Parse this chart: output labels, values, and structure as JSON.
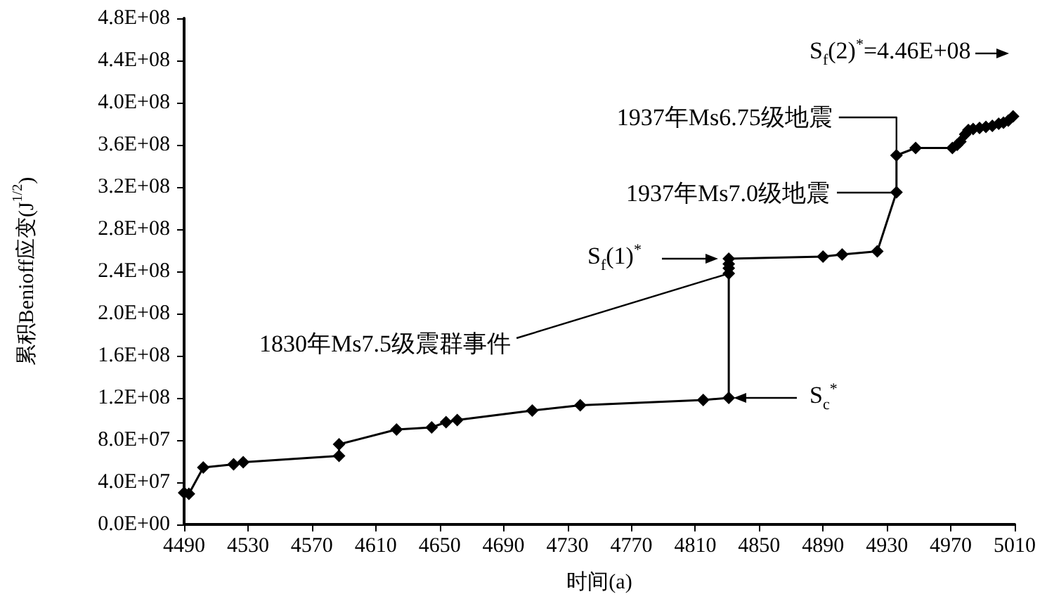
{
  "chart_data": {
    "type": "line",
    "xlabel": "时间(a)",
    "ylabel": "累积Benioff应变(J$^{1/2}$)",
    "x": [
      4490,
      4493,
      4502,
      4521,
      4527,
      4587,
      4587,
      4623,
      4645,
      4654,
      4661,
      4708,
      4738,
      4815,
      4831,
      4831,
      4831,
      4831,
      4831,
      4890,
      4902,
      4924,
      4936,
      4936,
      4948,
      4971,
      4974,
      4976,
      4979,
      4981,
      4984,
      4988,
      4992,
      4996,
      5000,
      5003,
      5006,
      5009
    ],
    "series": [
      {
        "color": "#000000",
        "values": [
          30000000.0,
          29000000.0,
          54000000.0,
          57000000.0,
          59000000.0,
          65000000.0,
          76000000.0,
          90000000.0,
          92000000.0,
          97000000.0,
          99000000.0,
          108000000.0,
          113000000.0,
          118000000.0,
          120000000.0,
          238000000.0,
          243000000.0,
          247000000.0,
          252000000.0,
          254000000.0,
          256000000.0,
          259000000.0,
          315000000.0,
          350000000.0,
          357000000.0,
          357000000.0,
          360000000.0,
          363000000.0,
          370000000.0,
          374000000.0,
          375000000.0,
          376000000.0,
          377000000.0,
          378000000.0,
          380000000.0,
          381000000.0,
          383000000.0,
          387000000.0
        ]
      }
    ],
    "xlim": [
      4490,
      5010
    ],
    "xticks": [
      4490,
      4530,
      4570,
      4610,
      4650,
      4690,
      4730,
      4770,
      4810,
      4850,
      4890,
      4930,
      4970,
      5010
    ],
    "ylim": [
      0,
      480000000
    ],
    "yticks": [
      {
        "value": 0,
        "label": "0.0E+00"
      },
      {
        "value": 40000000,
        "label": "4.0E+07"
      },
      {
        "value": 80000000,
        "label": "8.0E+07"
      },
      {
        "value": 120000000,
        "label": "1.2E+08"
      },
      {
        "value": 160000000,
        "label": "1.6E+08"
      },
      {
        "value": 200000000,
        "label": "2.0E+08"
      },
      {
        "value": 240000000,
        "label": "2.4E+08"
      },
      {
        "value": 280000000,
        "label": "2.8E+08"
      },
      {
        "value": 320000000,
        "label": "3.2E+08"
      },
      {
        "value": 360000000,
        "label": "3.6E+08"
      },
      {
        "value": 400000000,
        "label": "4.0E+08"
      },
      {
        "value": 440000000,
        "label": "4.4E+08"
      },
      {
        "value": 480000000,
        "label": "4.8E+08"
      }
    ],
    "grid": false,
    "marker": "diamond",
    "line_style": "solid",
    "annotations": [
      "S$_{f}$(2)$^{*}$=4.46E+08",
      {
        "text": "1937年Ms6.75级地震",
        "x": 4936,
        "y": 350000000
      },
      "1937年Ms7.0级地震",
      "S$_{f}$(1)$^{*}$",
      {
        "text": "1830年Ms7.5级震群事件",
        "x": 4831,
        "y": 238000000
      },
      "S$_{c}$$^{*}$"
    ]
  }
}
